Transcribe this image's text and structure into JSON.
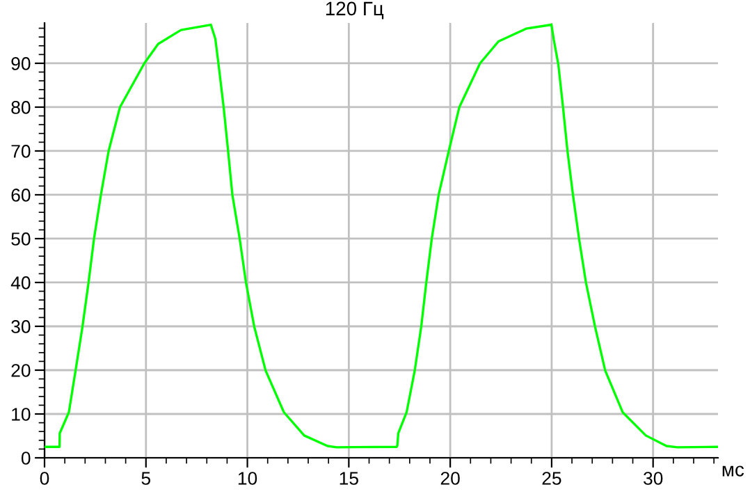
{
  "chart_data": {
    "type": "line",
    "title": "120 Гц",
    "xlabel": "мс",
    "series": [
      {
        "color": "#00ff00",
        "x": [
          0,
          0.74,
          0.75,
          1.2,
          1.53,
          1.87,
          2.17,
          2.44,
          2.78,
          3.16,
          3.72,
          4.92,
          5.6,
          6.73,
          8.2,
          8.42,
          8.58,
          8.83,
          9.05,
          9.26,
          9.62,
          9.93,
          10.34,
          10.9,
          11.8,
          12.8,
          13.95,
          14.4,
          17.35,
          17.39,
          17.44,
          17.85,
          18.25,
          18.57,
          18.82,
          19.09,
          19.43,
          19.93,
          20.45,
          21.47,
          22.38,
          23.74,
          24.99,
          25.1,
          25.33,
          25.56,
          25.78,
          26.05,
          26.35,
          26.69,
          27.14,
          27.64,
          28.5,
          29.64,
          30.66,
          31.2,
          33.2
        ],
        "values": [
          2.5,
          2.5,
          5.6,
          10.4,
          19.9,
          29.9,
          40,
          50,
          60,
          70,
          80,
          90,
          94.4,
          97.6,
          98.8,
          95.6,
          89.7,
          80,
          70,
          60,
          50,
          40,
          29.9,
          19.9,
          10.4,
          5.1,
          2.7,
          2.4,
          2.5,
          2.7,
          5.6,
          10.4,
          19.9,
          29.9,
          40,
          50,
          60,
          70,
          80,
          90,
          95,
          97.9,
          98.8,
          95.5,
          89.7,
          80,
          70,
          60,
          50,
          40,
          29.9,
          19.9,
          10.4,
          5.1,
          2.7,
          2.4,
          2.5
        ]
      }
    ],
    "xlim": [
      0,
      33.2
    ],
    "ylim": [
      0,
      99.2
    ],
    "xticks": [
      0,
      5,
      10,
      15,
      20,
      25,
      30
    ],
    "yticks": [
      0,
      10,
      20,
      30,
      40,
      50,
      60,
      70,
      80,
      90
    ],
    "grid": true,
    "marker": "none",
    "line_style": "solid"
  }
}
